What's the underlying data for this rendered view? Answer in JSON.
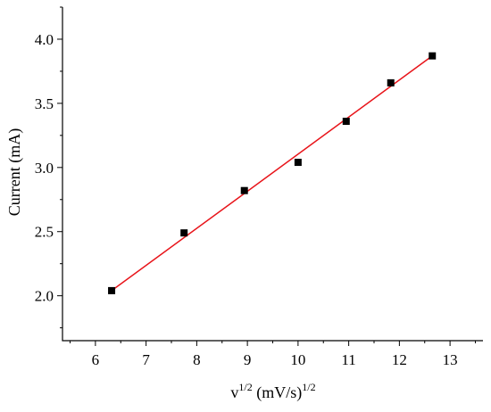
{
  "chart_data": {
    "type": "scatter",
    "title": "",
    "xlabel": {
      "base": "v",
      "base_sup": "1/2",
      "unit": " (mV/s)",
      "unit_sup": "1/2"
    },
    "ylabel": "Current (mA)",
    "xlim": [
      5.35,
      13.65
    ],
    "ylim": [
      1.65,
      4.25
    ],
    "xticks": [
      6,
      7,
      8,
      9,
      10,
      11,
      12,
      13
    ],
    "yticks": [
      2.0,
      2.5,
      3.0,
      3.5,
      4.0
    ],
    "ytick_labels": [
      "2.0",
      "2.5",
      "3.0",
      "3.5",
      "4.0"
    ],
    "series": [
      {
        "marker": "square",
        "color": "#000000",
        "x": [
          6.32,
          7.75,
          8.94,
          10.0,
          10.95,
          11.83,
          12.65
        ],
        "y": [
          2.04,
          2.49,
          2.82,
          3.04,
          3.36,
          3.66,
          3.87
        ]
      }
    ],
    "fit_line": {
      "color": "#e8141a",
      "x": [
        6.32,
        12.65
      ],
      "y": [
        2.04,
        3.87
      ]
    },
    "grid": false,
    "legend": "none"
  }
}
